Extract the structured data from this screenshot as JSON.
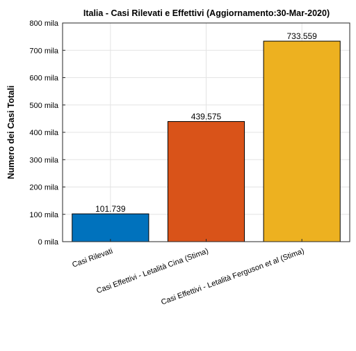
{
  "chart_data": {
    "type": "bar",
    "title": "Italia - Casi Rilevati e Effettivi (Aggiornamento:30-Mar-2020)",
    "xlabel": "",
    "ylabel": "Numero dei Casi Totali",
    "categories": [
      "Casi Rilevati",
      "Casi Effettivi - Letalità Cina (Stima)",
      "Casi Effettivi - Letalità Ferguson et al (Stima)"
    ],
    "values": [
      101739,
      439575,
      733559
    ],
    "data_labels": [
      "101.739",
      "439.575",
      "733.559"
    ],
    "colors": [
      "#0072BD",
      "#D95319",
      "#EDB120"
    ],
    "ylim": [
      0,
      800000
    ],
    "yticks": [
      0,
      100000,
      200000,
      300000,
      400000,
      500000,
      600000,
      700000,
      800000
    ],
    "ytick_labels": [
      "0 mila",
      "100 mila",
      "200 mila",
      "300 mila",
      "400 mila",
      "500 mila",
      "600 mila",
      "700 mila",
      "800 mila"
    ],
    "grid": true
  }
}
